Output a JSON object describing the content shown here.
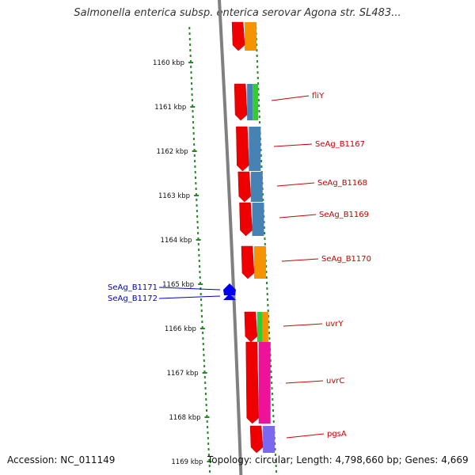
{
  "title": "Salmonella enterica subsp. enterica serovar Agona str. SL483...",
  "footer": {
    "accession": "Accession: NC_011149",
    "summary": "Topology: circular; Length: 4,798,660 bp; Genes: 4,669"
  },
  "colors": {
    "backbone": "#808080",
    "tick": "#228b22",
    "forward_label": "#cc0000",
    "reverse_label": "#0000cc",
    "red": "#ee0000",
    "orange": "#f59400",
    "green": "#33cc33",
    "steelblue": "#4682b4",
    "magenta": "#ee1199",
    "purple": "#7b68ee"
  },
  "ruler": {
    "unit": "kbp",
    "ticks": [
      "1160 kbp",
      "1161 kbp",
      "1162 kbp",
      "1163 kbp",
      "1164 kbp",
      "1165 kbp",
      "1166 kbp",
      "1167 kbp",
      "1168 kbp",
      "1169 kbp"
    ]
  },
  "gene_labels": [
    {
      "text": "fliY",
      "strand": "forward"
    },
    {
      "text": "SeAg_B1167",
      "strand": "forward"
    },
    {
      "text": "SeAg_B1168",
      "strand": "forward"
    },
    {
      "text": "SeAg_B1169",
      "strand": "forward"
    },
    {
      "text": "SeAg_B1170",
      "strand": "forward"
    },
    {
      "text": "uvrY",
      "strand": "forward"
    },
    {
      "text": "uvrC",
      "strand": "forward"
    },
    {
      "text": "pgsA",
      "strand": "forward"
    },
    {
      "text": "SeAg_B1171",
      "strand": "reverse"
    },
    {
      "text": "SeAg_B1172",
      "strand": "reverse"
    }
  ],
  "feature_tracks": [
    {
      "name": "genes-forward",
      "color": "red"
    },
    {
      "name": "cog-category",
      "colors": [
        "orange",
        "steelblue",
        "green",
        "magenta",
        "purple"
      ]
    }
  ]
}
